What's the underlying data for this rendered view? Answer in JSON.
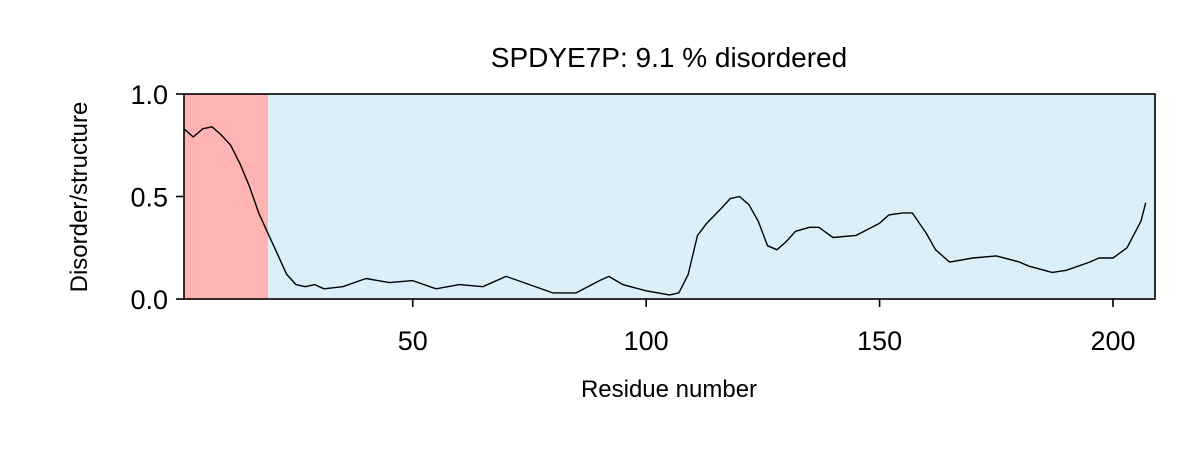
{
  "chart_data": {
    "type": "line",
    "title": "SPDYE7P: 9.1 % disordered",
    "xlabel": "Residue number",
    "ylabel": "Disorder/structure",
    "xlim": [
      1,
      209
    ],
    "ylim": [
      0,
      1
    ],
    "xticks": [
      50,
      100,
      150,
      200
    ],
    "xtick_labels": [
      "50",
      "100",
      "150",
      "200"
    ],
    "yticks": [
      0,
      0.5,
      1
    ],
    "ytick_labels": [
      "0.0",
      "0.5",
      "1.0"
    ],
    "grid": false,
    "legend": "none",
    "regions": [
      {
        "label": "disordered",
        "x0": 1,
        "x1": 19,
        "color": "#ffb3b3"
      },
      {
        "label": "structured",
        "x0": 19,
        "x1": 209,
        "color": "#daeff7"
      }
    ],
    "series": [
      {
        "color": "#000000",
        "x": [
          1,
          3,
          5,
          7,
          9,
          11,
          13,
          15,
          17,
          19,
          21,
          23,
          25,
          27,
          29,
          31,
          35,
          40,
          45,
          50,
          55,
          60,
          65,
          70,
          75,
          80,
          85,
          90,
          92,
          95,
          100,
          105,
          107,
          109,
          111,
          113,
          116,
          118,
          120,
          122,
          124,
          126,
          128,
          130,
          132,
          135,
          137,
          140,
          145,
          150,
          152,
          155,
          157,
          160,
          162,
          165,
          170,
          175,
          180,
          182,
          187,
          190,
          195,
          197,
          200,
          203,
          206,
          207
        ],
        "y": [
          0.83,
          0.79,
          0.83,
          0.84,
          0.8,
          0.75,
          0.66,
          0.55,
          0.42,
          0.32,
          0.22,
          0.12,
          0.07,
          0.06,
          0.07,
          0.05,
          0.06,
          0.1,
          0.08,
          0.09,
          0.05,
          0.07,
          0.06,
          0.11,
          0.07,
          0.03,
          0.03,
          0.09,
          0.11,
          0.07,
          0.04,
          0.02,
          0.03,
          0.12,
          0.31,
          0.37,
          0.44,
          0.49,
          0.5,
          0.46,
          0.38,
          0.26,
          0.24,
          0.28,
          0.33,
          0.35,
          0.35,
          0.3,
          0.31,
          0.37,
          0.41,
          0.42,
          0.42,
          0.32,
          0.24,
          0.18,
          0.2,
          0.21,
          0.18,
          0.16,
          0.13,
          0.14,
          0.18,
          0.2,
          0.2,
          0.25,
          0.38,
          0.47
        ]
      }
    ]
  }
}
